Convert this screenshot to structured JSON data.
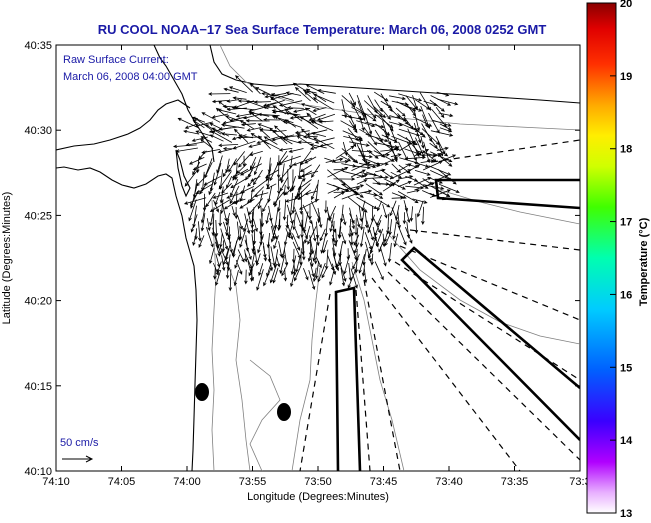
{
  "chart_data": {
    "type": "map",
    "title": "RU COOL  NOAA−17  Sea Surface Temperature:  March 06, 2008 0252 GMT",
    "annotation_line1": "Raw Surface Current:",
    "annotation_line2": "March 06, 2008 04:00 GMT",
    "scale_label": "50 cm/s",
    "xlabel": "Longitude (Degrees:Minutes)",
    "ylabel": "Latitude (Degrees:Minutes)",
    "x_ticks": [
      "74:10",
      "74:05",
      "74:00",
      "73:55",
      "73:50",
      "73:45",
      "73:40",
      "73:35",
      "73:3"
    ],
    "y_ticks": [
      "40:35",
      "40:30",
      "40:25",
      "40:20",
      "40:15",
      "40:10"
    ],
    "colorbar": {
      "label": "Temperature (°C)",
      "ticks": [
        "20",
        "19",
        "18",
        "17",
        "16",
        "15",
        "14",
        "13"
      ],
      "range": [
        13,
        20
      ]
    },
    "colors": {
      "title": "#1a1aa6",
      "coast": "#000000",
      "contour": "#808080"
    }
  }
}
